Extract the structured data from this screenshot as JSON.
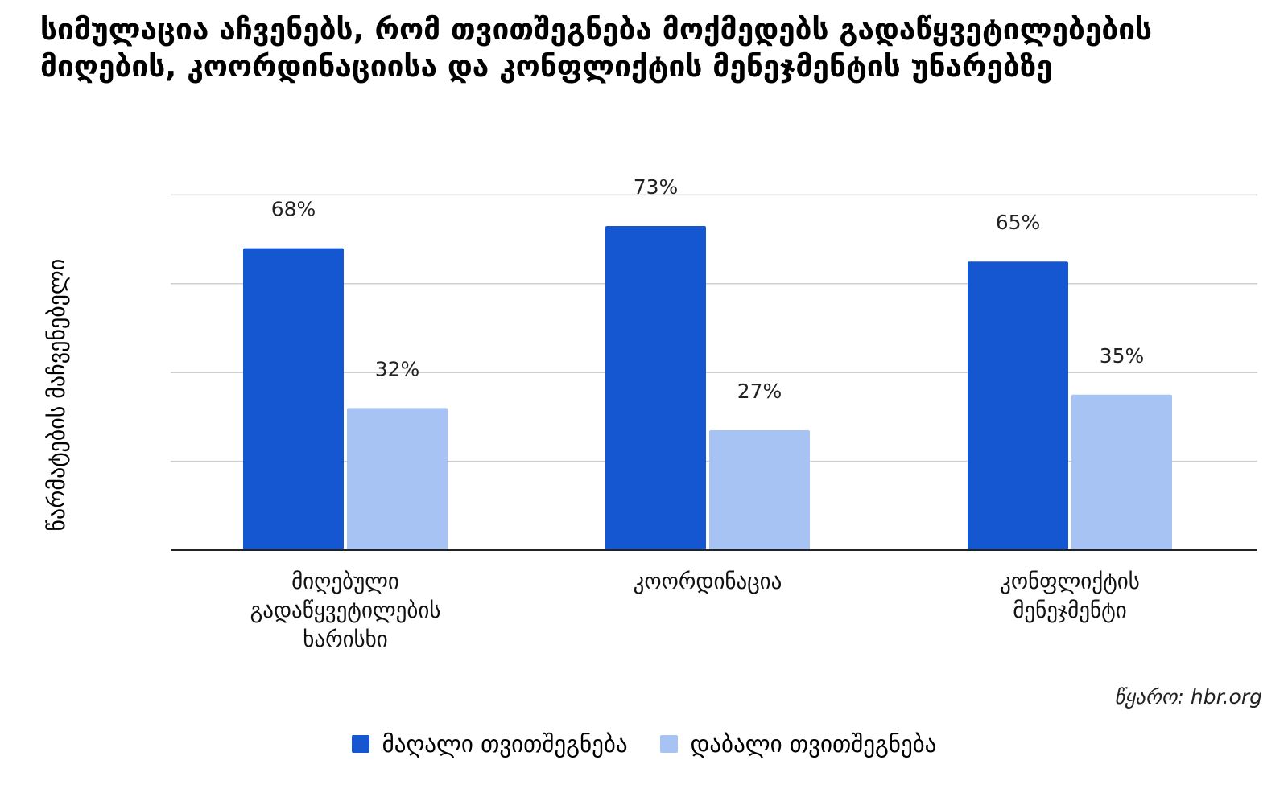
{
  "chart_data": {
    "type": "bar",
    "title": "სიმულაცია აჩვენებს, რომ თვითშეგნება მოქმედებს გადაწყვეტილებების მიღების, კოორდინაციისა და კონფლიქტის მენეჯმენტის უნარებზე",
    "ylabel": "წარმატების მაჩვენებელი",
    "xlabel": "",
    "ylim": [
      0,
      80
    ],
    "grid": true,
    "legend": "bottom",
    "categories": [
      "მიღებული გადაწყვეტილების ხარისხი",
      "კოორდინაცია",
      "კონფლიქტის მენეჯმენტი"
    ],
    "category_lines": [
      [
        "მიღებული",
        "გადაწყვეტილების",
        "ხარისხი"
      ],
      [
        "კოორდინაცია"
      ],
      [
        "კონფლიქტის",
        "მენეჯმენტი"
      ]
    ],
    "series": [
      {
        "name": "მაღალი თვითშეგნება",
        "values": [
          68,
          73,
          65
        ],
        "labels": [
          "68%",
          "73%",
          "65%"
        ],
        "color": "#1557d0"
      },
      {
        "name": "დაბალი თვითშეგნება",
        "values": [
          32,
          27,
          35
        ],
        "labels": [
          "32%",
          "27%",
          "35%"
        ],
        "color": "#a6c3f3"
      }
    ],
    "source": "წყარო: hbr.org"
  }
}
